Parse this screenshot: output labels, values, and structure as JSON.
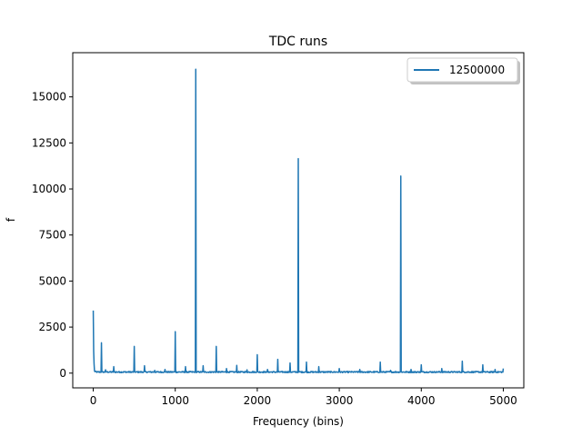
{
  "chart_data": {
    "type": "line",
    "title": "TDC runs",
    "xlabel": "Frequency (bins)",
    "ylabel": "f",
    "xlim": [
      -250,
      5250
    ],
    "ylim": [
      -800,
      17400
    ],
    "xticks": [
      0,
      1000,
      2000,
      3000,
      4000,
      5000
    ],
    "yticks": [
      0,
      2500,
      5000,
      7500,
      10000,
      12500,
      15000
    ],
    "grid": false,
    "legend": "top-right",
    "series": [
      {
        "name": "12500000",
        "color": "#1f77b4",
        "baseline": 60,
        "peaks": [
          [
            0,
            3400
          ],
          [
            5,
            1200
          ],
          [
            10,
            500
          ],
          [
            100,
            1650
          ],
          [
            150,
            180
          ],
          [
            250,
            350
          ],
          [
            500,
            1450
          ],
          [
            625,
            400
          ],
          [
            750,
            150
          ],
          [
            875,
            200
          ],
          [
            1000,
            2250
          ],
          [
            1125,
            350
          ],
          [
            1250,
            16500
          ],
          [
            1340,
            400
          ],
          [
            1500,
            1450
          ],
          [
            1625,
            250
          ],
          [
            1750,
            420
          ],
          [
            1875,
            180
          ],
          [
            2000,
            1000
          ],
          [
            2125,
            200
          ],
          [
            2250,
            750
          ],
          [
            2400,
            550
          ],
          [
            2500,
            11650
          ],
          [
            2600,
            600
          ],
          [
            2750,
            350
          ],
          [
            3000,
            250
          ],
          [
            3250,
            200
          ],
          [
            3500,
            600
          ],
          [
            3625,
            150
          ],
          [
            3750,
            10700
          ],
          [
            3875,
            200
          ],
          [
            4000,
            450
          ],
          [
            4250,
            250
          ],
          [
            4500,
            650
          ],
          [
            4750,
            450
          ],
          [
            4900,
            200
          ],
          [
            5000,
            250
          ]
        ]
      }
    ]
  }
}
